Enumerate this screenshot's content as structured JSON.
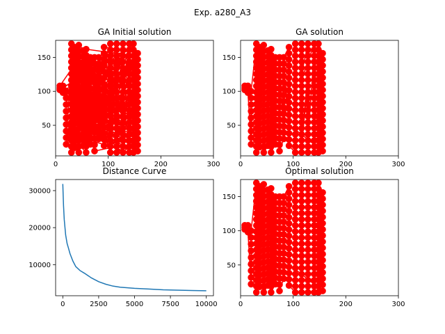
{
  "figure": {
    "suptitle": "Exp. a280_A3"
  },
  "colors": {
    "route": "#ff0000",
    "curve": "#1f77b4",
    "axes": "#000000",
    "background": "#ffffff"
  },
  "chart_data": [
    {
      "id": "initial",
      "type": "scatter",
      "title": "GA Initial solution",
      "xlim": [
        0,
        300
      ],
      "ylim": [
        5,
        175
      ],
      "xticks": [
        0,
        100,
        200,
        300
      ],
      "yticks": [
        50,
        100,
        150
      ],
      "xlabel": "",
      "ylabel": "",
      "points_connected": true,
      "num_points": 280,
      "color": "#ff0000",
      "description_of_route": "random tour (unordered)"
    },
    {
      "id": "ga",
      "type": "scatter",
      "title": "GA solution",
      "xlim": [
        0,
        300
      ],
      "ylim": [
        5,
        175
      ],
      "xticks": [
        0,
        100,
        200,
        300
      ],
      "yticks": [
        50,
        100,
        150
      ],
      "xlabel": "",
      "ylabel": "",
      "points_connected": true,
      "num_points": 280,
      "color": "#ff0000"
    },
    {
      "id": "curve",
      "type": "line",
      "title": "Distance Curve",
      "xlim": [
        -500,
        10500
      ],
      "ylim": [
        1600,
        33000
      ],
      "xticks": [
        0,
        2500,
        5000,
        7500,
        10000
      ],
      "yticks": [
        10000,
        20000,
        30000
      ],
      "xlabel": "",
      "ylabel": "",
      "color": "#1f77b4",
      "x": [
        0,
        50,
        100,
        200,
        300,
        400,
        500,
        700,
        900,
        1200,
        1500,
        2000,
        2500,
        3000,
        3500,
        4000,
        5000,
        6000,
        7000,
        8000,
        9000,
        10000
      ],
      "y": [
        31800,
        26000,
        22200,
        18000,
        15700,
        14400,
        13000,
        11000,
        9500,
        8400,
        7700,
        6400,
        5400,
        4700,
        4200,
        3900,
        3600,
        3400,
        3200,
        3100,
        3000,
        2950
      ]
    },
    {
      "id": "optimal",
      "type": "scatter",
      "title": "Optimal solution",
      "xlim": [
        0,
        300
      ],
      "ylim": [
        5,
        175
      ],
      "xticks": [
        0,
        100,
        200,
        300
      ],
      "yticks": [
        50,
        100,
        150
      ],
      "xlabel": "",
      "ylabel": "",
      "points_connected": true,
      "num_points": 280,
      "color": "#ff0000"
    }
  ]
}
